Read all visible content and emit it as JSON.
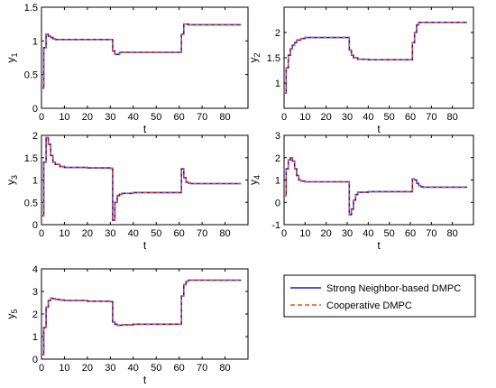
{
  "colors": {
    "series1": "#1a1acc",
    "series2": "#e3522a",
    "axis": "#000000"
  },
  "legend": {
    "items": [
      {
        "label": "Strong Neighbor-based DMPC",
        "style": "solid",
        "color": "#1a1acc"
      },
      {
        "label": "Cooperative DMPC",
        "style": "dashed",
        "color": "#e3522a"
      }
    ]
  },
  "chart_data": [
    {
      "type": "line",
      "xlabel": "t",
      "ylabel_base": "y",
      "ylabel_sub": "1",
      "xlim": [
        0,
        90
      ],
      "ylim": [
        0,
        1.5
      ],
      "xticks": [
        0,
        10,
        20,
        30,
        40,
        50,
        60,
        70,
        80
      ],
      "xticklabels": [
        "0",
        "10",
        "20",
        "30",
        "40",
        "50",
        "60",
        "70",
        "80"
      ],
      "yticks": [
        0,
        0.5,
        1,
        1.5
      ],
      "yticklabels": [
        "0",
        "0.5",
        "1",
        "1.5"
      ],
      "grid": false,
      "series": [
        {
          "x": [
            0,
            1,
            2,
            3,
            4,
            5,
            6,
            8,
            10,
            30,
            31,
            32,
            34,
            60,
            61,
            62,
            64,
            87
          ],
          "y": [
            0.3,
            0.9,
            1.1,
            1.07,
            1.05,
            1.03,
            1.02,
            1.02,
            1.02,
            1.02,
            0.85,
            0.8,
            0.83,
            0.83,
            1.1,
            1.25,
            1.24,
            1.24
          ]
        },
        {
          "x": [
            0,
            1,
            2,
            3,
            4,
            5,
            6,
            8,
            10,
            30,
            31,
            32,
            34,
            60,
            61,
            62,
            64,
            87
          ],
          "y": [
            0.3,
            0.9,
            1.1,
            1.07,
            1.05,
            1.03,
            1.02,
            1.02,
            1.02,
            1.02,
            0.85,
            0.8,
            0.83,
            0.83,
            1.1,
            1.25,
            1.24,
            1.24
          ]
        }
      ]
    },
    {
      "type": "line",
      "xlabel": "t",
      "ylabel_base": "y",
      "ylabel_sub": "2",
      "xlim": [
        0,
        90
      ],
      "ylim": [
        0.5,
        2.5
      ],
      "xticks": [
        0,
        10,
        20,
        30,
        40,
        50,
        60,
        70,
        80
      ],
      "xticklabels": [
        "0",
        "10",
        "20",
        "30",
        "40",
        "50",
        "60",
        "70",
        "80"
      ],
      "yticks": [
        1,
        1.5,
        2
      ],
      "yticklabels": [
        "1",
        "1.5",
        "2"
      ],
      "grid": false,
      "series": [
        {
          "x": [
            0,
            1,
            2,
            3,
            4,
            5,
            6,
            8,
            10,
            20,
            30,
            31,
            32,
            33,
            35,
            40,
            50,
            60,
            61,
            62,
            63,
            64,
            87
          ],
          "y": [
            0.8,
            1.3,
            1.55,
            1.68,
            1.75,
            1.8,
            1.85,
            1.88,
            1.9,
            1.9,
            1.9,
            1.65,
            1.55,
            1.5,
            1.47,
            1.46,
            1.46,
            1.46,
            1.8,
            2.0,
            2.15,
            2.2,
            2.2
          ]
        },
        {
          "x": [
            0,
            1,
            2,
            3,
            4,
            5,
            6,
            8,
            10,
            20,
            30,
            31,
            32,
            33,
            35,
            40,
            50,
            60,
            61,
            62,
            63,
            64,
            87
          ],
          "y": [
            0.8,
            1.3,
            1.55,
            1.68,
            1.75,
            1.8,
            1.85,
            1.88,
            1.9,
            1.9,
            1.9,
            1.65,
            1.55,
            1.5,
            1.47,
            1.46,
            1.46,
            1.46,
            1.8,
            2.0,
            2.15,
            2.2,
            2.2
          ]
        }
      ]
    },
    {
      "type": "line",
      "xlabel": "t",
      "ylabel_base": "y",
      "ylabel_sub": "3",
      "xlim": [
        0,
        90
      ],
      "ylim": [
        0,
        2
      ],
      "xticks": [
        0,
        10,
        20,
        30,
        40,
        50,
        60,
        70,
        80
      ],
      "xticklabels": [
        "0",
        "10",
        "20",
        "30",
        "40",
        "50",
        "60",
        "70",
        "80"
      ],
      "yticks": [
        0,
        0.5,
        1,
        1.5,
        2
      ],
      "yticklabels": [
        "0",
        "0.5",
        "1",
        "1.5",
        "2"
      ],
      "grid": false,
      "series": [
        {
          "x": [
            0,
            1,
            2,
            3,
            4,
            5,
            6,
            8,
            10,
            20,
            30,
            31,
            32,
            33,
            34,
            35,
            40,
            50,
            60,
            61,
            62,
            63,
            64,
            65,
            87
          ],
          "y": [
            0.2,
            1.4,
            1.95,
            1.8,
            1.55,
            1.4,
            1.35,
            1.3,
            1.28,
            1.27,
            1.26,
            0.1,
            0.5,
            0.65,
            0.68,
            0.7,
            0.72,
            0.72,
            0.72,
            1.25,
            1.05,
            0.95,
            0.93,
            0.92,
            0.92
          ]
        },
        {
          "x": [
            0,
            1,
            2,
            3,
            4,
            5,
            6,
            8,
            10,
            20,
            30,
            31,
            32,
            33,
            34,
            35,
            40,
            50,
            60,
            61,
            62,
            63,
            64,
            65,
            87
          ],
          "y": [
            0.2,
            1.4,
            1.95,
            1.8,
            1.55,
            1.4,
            1.35,
            1.3,
            1.28,
            1.27,
            1.26,
            0.1,
            0.5,
            0.65,
            0.68,
            0.7,
            0.72,
            0.72,
            0.72,
            1.25,
            1.05,
            0.95,
            0.93,
            0.92,
            0.92
          ]
        }
      ]
    },
    {
      "type": "line",
      "xlabel": "t",
      "ylabel_base": "y",
      "ylabel_sub": "4",
      "xlim": [
        0,
        90
      ],
      "ylim": [
        -1,
        3
      ],
      "xticks": [
        0,
        10,
        20,
        30,
        40,
        50,
        60,
        70,
        80
      ],
      "xticklabels": [
        "0",
        "10",
        "20",
        "30",
        "40",
        "50",
        "60",
        "70",
        "80"
      ],
      "yticks": [
        -1,
        0,
        1,
        2,
        3
      ],
      "yticklabels": [
        "-1",
        "0",
        "1",
        "2",
        "3"
      ],
      "grid": false,
      "series": [
        {
          "x": [
            0,
            1,
            2,
            3,
            4,
            5,
            6,
            7,
            8,
            10,
            20,
            30,
            31,
            32,
            33,
            34,
            35,
            40,
            50,
            60,
            61,
            62,
            63,
            64,
            65,
            66,
            70,
            87
          ],
          "y": [
            0.3,
            1.5,
            1.9,
            2.0,
            1.85,
            1.5,
            1.2,
            1.0,
            0.95,
            0.92,
            0.92,
            0.92,
            -0.55,
            -0.3,
            0.1,
            0.35,
            0.45,
            0.48,
            0.48,
            0.48,
            1.05,
            1.0,
            0.85,
            0.75,
            0.7,
            0.68,
            0.68,
            0.68
          ]
        },
        {
          "x": [
            0,
            1,
            2,
            3,
            4,
            5,
            6,
            7,
            8,
            10,
            20,
            30,
            31,
            32,
            33,
            34,
            35,
            40,
            50,
            60,
            61,
            62,
            63,
            64,
            65,
            66,
            70,
            87
          ],
          "y": [
            0.3,
            1.5,
            1.9,
            2.0,
            1.85,
            1.5,
            1.2,
            1.0,
            0.95,
            0.92,
            0.92,
            0.92,
            -0.55,
            -0.3,
            0.1,
            0.35,
            0.45,
            0.48,
            0.48,
            0.48,
            1.05,
            1.0,
            0.85,
            0.75,
            0.7,
            0.68,
            0.68,
            0.68
          ]
        }
      ]
    },
    {
      "type": "line",
      "xlabel": "t",
      "ylabel_base": "y",
      "ylabel_sub": "5",
      "xlim": [
        0,
        90
      ],
      "ylim": [
        0,
        4
      ],
      "xticks": [
        0,
        10,
        20,
        30,
        40,
        50,
        60,
        70,
        80
      ],
      "xticklabels": [
        "0",
        "10",
        "20",
        "30",
        "40",
        "50",
        "60",
        "70",
        "80"
      ],
      "yticks": [
        0,
        1,
        2,
        3,
        4
      ],
      "yticklabels": [
        "0",
        "1",
        "2",
        "3",
        "4"
      ],
      "grid": false,
      "series": [
        {
          "x": [
            0,
            1,
            2,
            3,
            4,
            5,
            6,
            8,
            10,
            20,
            30,
            31,
            32,
            33,
            35,
            40,
            50,
            60,
            61,
            62,
            63,
            64,
            87
          ],
          "y": [
            0.2,
            1.4,
            2.3,
            2.6,
            2.7,
            2.68,
            2.65,
            2.62,
            2.6,
            2.57,
            2.55,
            1.65,
            1.55,
            1.5,
            1.52,
            1.55,
            1.55,
            1.55,
            2.8,
            3.3,
            3.45,
            3.5,
            3.5
          ]
        },
        {
          "x": [
            0,
            1,
            2,
            3,
            4,
            5,
            6,
            8,
            10,
            20,
            30,
            31,
            32,
            33,
            35,
            40,
            50,
            60,
            61,
            62,
            63,
            64,
            87
          ],
          "y": [
            0.2,
            1.4,
            2.3,
            2.6,
            2.7,
            2.68,
            2.65,
            2.62,
            2.6,
            2.57,
            2.55,
            1.65,
            1.55,
            1.5,
            1.52,
            1.55,
            1.55,
            1.55,
            2.8,
            3.3,
            3.45,
            3.5,
            3.5
          ]
        }
      ]
    }
  ]
}
